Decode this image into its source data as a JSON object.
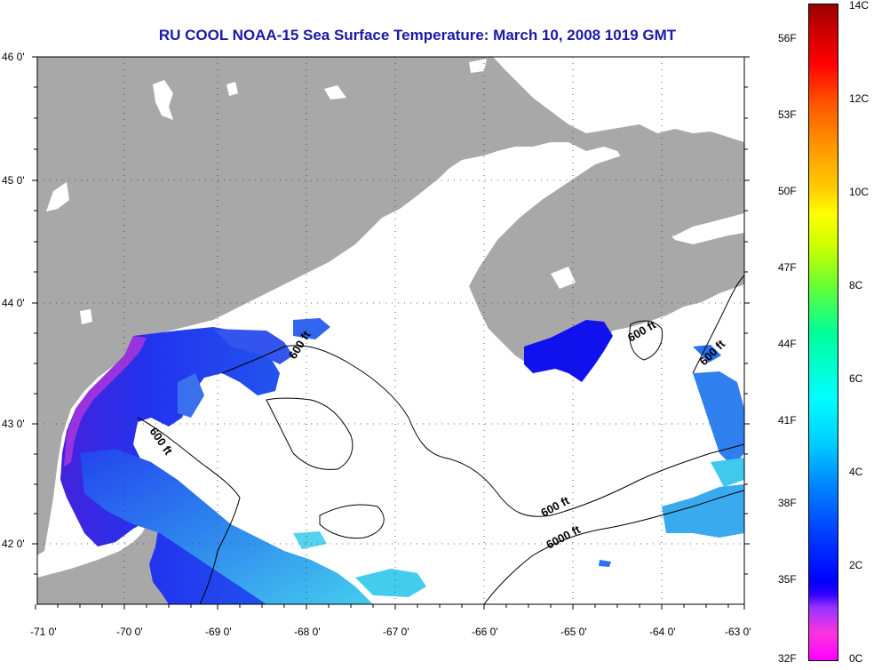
{
  "title": "RU COOL  NOAA-15  Sea Surface Temperature:  March 10, 2008 1019 GMT",
  "axes": {
    "lon_labels": [
      "-71 0'",
      "-70 0'",
      "-69 0'",
      "-68 0'",
      "-67 0'",
      "-66 0'",
      "-65 0'",
      "-64 0'",
      "-63 0'"
    ],
    "lat_labels": [
      "46 0'",
      "45 0'",
      "44 0'",
      "43 0'",
      "42 0'"
    ]
  },
  "contours": {
    "label_600_a": "600 ft",
    "label_600_b": "600 ft",
    "label_600_c": "600 ft",
    "label_600_d": "600 ft",
    "label_600_e": "600 ft",
    "label_6000": "6000 ft"
  },
  "colorbar": {
    "celsius": [
      "14C",
      "12C",
      "10C",
      "8C",
      "6C",
      "4C",
      "2C",
      "0C"
    ],
    "fahrenheit": [
      "56F",
      "53F",
      "50F",
      "47F",
      "44F",
      "41F",
      "38F",
      "35F",
      "32F"
    ],
    "min_c": 0,
    "max_c": 14
  },
  "colors": {
    "land": "#a8a8a8",
    "no_data": "#ffffff",
    "title": "#1a1aa6",
    "cold": "#2222ee",
    "cool": "#33bbee"
  }
}
